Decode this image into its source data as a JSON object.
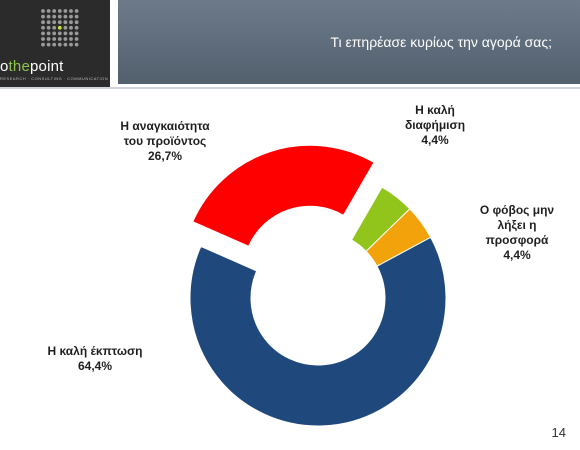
{
  "header": {
    "title": "Τι επηρέασε κυρίως την αγορά σας;"
  },
  "logo": {
    "text_a": "o",
    "text_b": "the",
    "text_c": "point",
    "tagline": "RESEARCH · CONSULTING · COMMUNICATION"
  },
  "page_number": "14",
  "chart_data": {
    "type": "pie",
    "variant": "donut",
    "title": "",
    "slices": [
      {
        "label_lines": [
          "Η καλή",
          "διαφήμιση"
        ],
        "value": 4.4,
        "value_label": "4,4%",
        "color": "#92c51b"
      },
      {
        "label_lines": [
          "Ο φόβος μην",
          "λήξει η",
          "προσφορά"
        ],
        "value": 4.4,
        "value_label": "4,4%",
        "color": "#f2a20a"
      },
      {
        "label_lines": [
          "Η καλή έκπτωση"
        ],
        "value": 64.4,
        "value_label": "64,4%",
        "color": "#1f497d"
      },
      {
        "label_lines": [
          "Η αναγκαιότητα",
          "του προϊόντος"
        ],
        "value": 26.7,
        "value_label": "26,7%",
        "color": "#ff0000",
        "exploded": true
      }
    ]
  }
}
